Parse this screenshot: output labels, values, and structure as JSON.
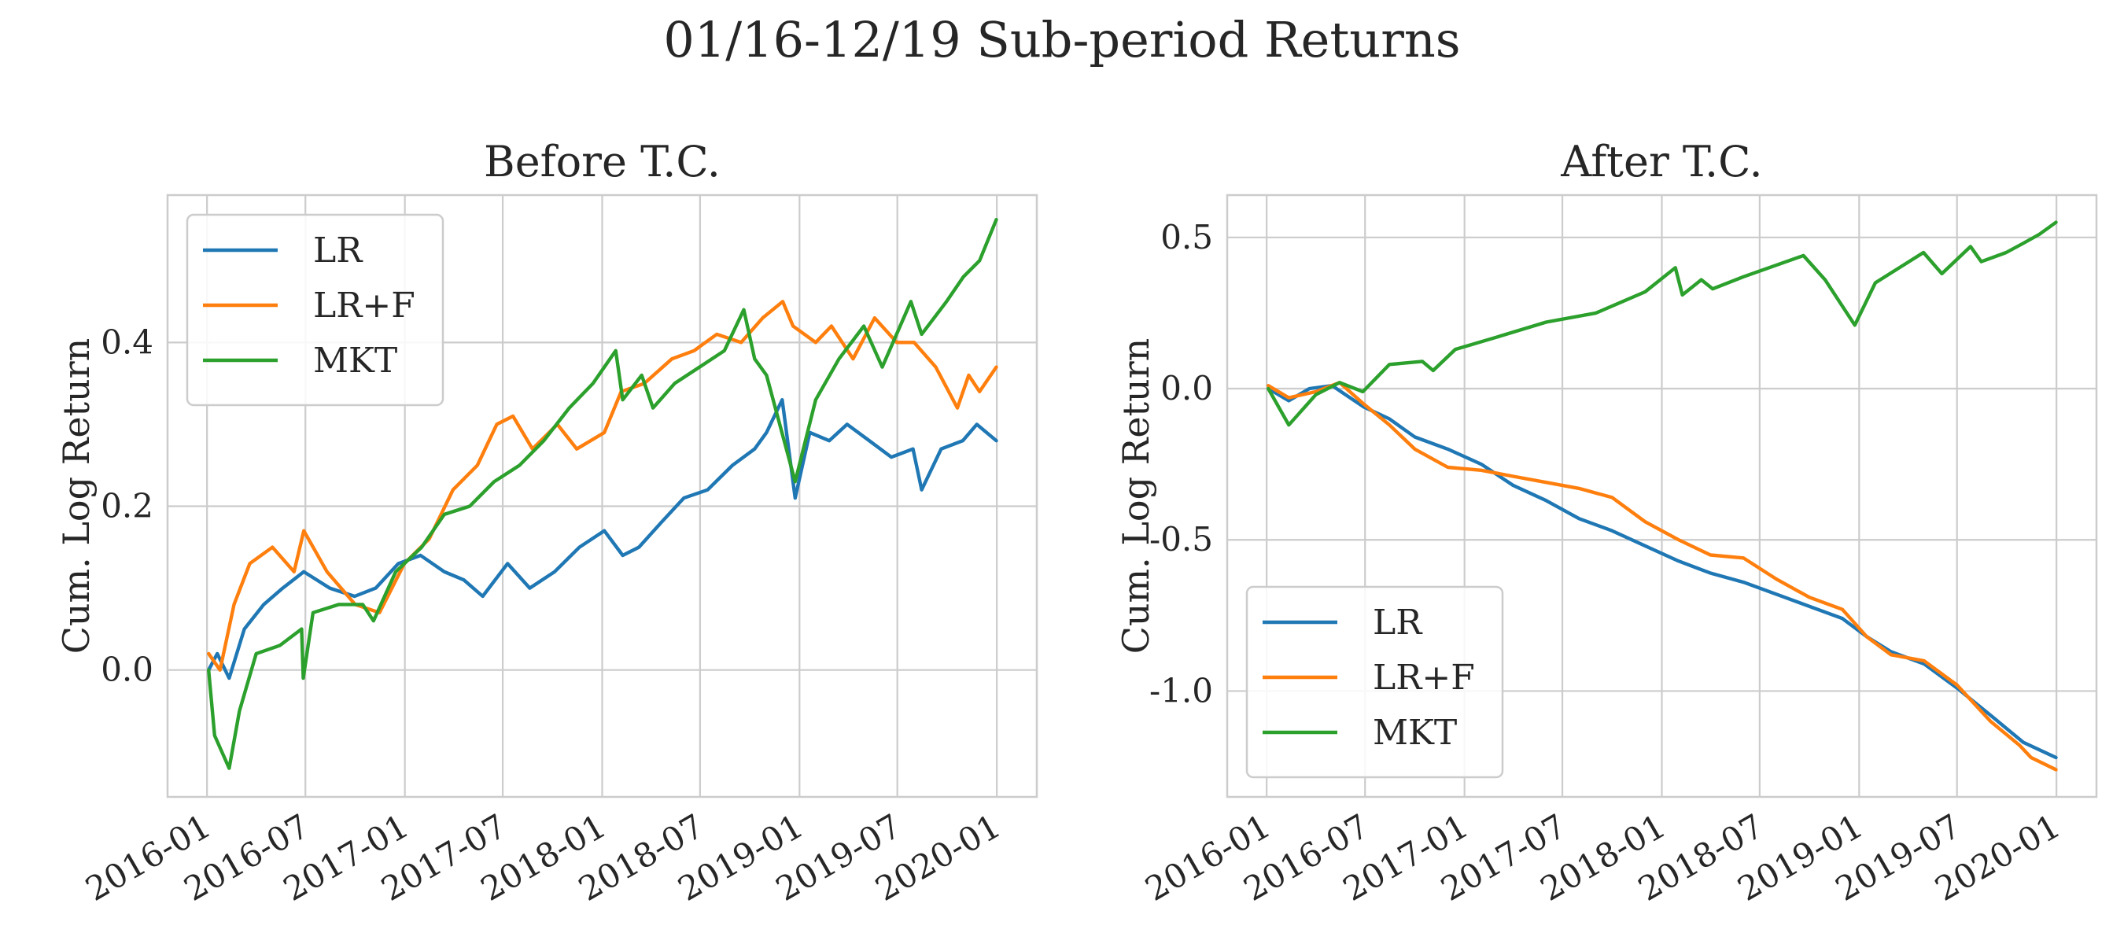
{
  "figure": {
    "title": "01/16-12/19 Sub-period Returns"
  },
  "colors": {
    "LR": "#1f77b4",
    "LR+F": "#ff7f0e",
    "MKT": "#2ca02c",
    "grid": "#cccccc"
  },
  "chart_data": [
    {
      "type": "line",
      "title": "Before T.C.",
      "xlabel": "",
      "ylabel": "Cum. Log Return",
      "x_ticks": [
        "2016-01",
        "2016-07",
        "2017-01",
        "2017-07",
        "2018-01",
        "2018-07",
        "2019-01",
        "2019-07",
        "2020-01"
      ],
      "y_ticks": [
        "0.0",
        "0.2",
        "0.4"
      ],
      "y_tick_values": [
        0.0,
        0.2,
        0.4
      ],
      "xlim": [
        "2015-10-20",
        "2020-03-15"
      ],
      "ylim": [
        -0.155,
        0.58
      ],
      "grid": true,
      "legend": "upper-left",
      "series": [
        {
          "name": "LR",
          "x": [
            "2016-01-04",
            "2016-01-20",
            "2016-02-11",
            "2016-03-10",
            "2016-04-15",
            "2016-05-20",
            "2016-06-28",
            "2016-08-15",
            "2016-09-30",
            "2016-11-08",
            "2016-12-20",
            "2017-01-30",
            "2017-03-15",
            "2017-04-20",
            "2017-05-25",
            "2017-07-10",
            "2017-08-20",
            "2017-10-05",
            "2017-11-20",
            "2018-01-05",
            "2018-02-08",
            "2018-03-10",
            "2018-04-20",
            "2018-06-01",
            "2018-07-15",
            "2018-08-30",
            "2018-10-10",
            "2018-11-01",
            "2018-11-30",
            "2018-12-24",
            "2019-01-20",
            "2019-02-25",
            "2019-03-30",
            "2019-05-10",
            "2019-06-20",
            "2019-07-30",
            "2019-08-15",
            "2019-09-20",
            "2019-10-30",
            "2019-11-25",
            "2019-12-31"
          ],
          "y": [
            0.0,
            0.02,
            -0.01,
            0.05,
            0.08,
            0.1,
            0.12,
            0.1,
            0.09,
            0.1,
            0.13,
            0.14,
            0.12,
            0.11,
            0.09,
            0.13,
            0.1,
            0.12,
            0.15,
            0.17,
            0.14,
            0.15,
            0.18,
            0.21,
            0.22,
            0.25,
            0.27,
            0.29,
            0.33,
            0.21,
            0.29,
            0.28,
            0.3,
            0.28,
            0.26,
            0.27,
            0.22,
            0.27,
            0.28,
            0.3,
            0.28
          ]
        },
        {
          "name": "LR+F",
          "x": [
            "2016-01-04",
            "2016-01-25",
            "2016-02-20",
            "2016-03-20",
            "2016-05-01",
            "2016-06-10",
            "2016-06-28",
            "2016-08-10",
            "2016-10-01",
            "2016-11-15",
            "2016-12-31",
            "2017-02-15",
            "2017-03-31",
            "2017-05-15",
            "2017-06-20",
            "2017-07-20",
            "2017-08-25",
            "2017-10-10",
            "2017-11-15",
            "2018-01-05",
            "2018-02-05",
            "2018-03-20",
            "2018-05-10",
            "2018-06-20",
            "2018-08-01",
            "2018-09-15",
            "2018-10-25",
            "2018-12-01",
            "2018-12-20",
            "2019-01-31",
            "2019-03-01",
            "2019-04-10",
            "2019-05-20",
            "2019-06-30",
            "2019-08-01",
            "2019-09-10",
            "2019-10-20",
            "2019-11-10",
            "2019-11-30",
            "2019-12-31"
          ],
          "y": [
            0.02,
            0.0,
            0.08,
            0.13,
            0.15,
            0.12,
            0.17,
            0.12,
            0.08,
            0.07,
            0.13,
            0.16,
            0.22,
            0.25,
            0.3,
            0.31,
            0.27,
            0.3,
            0.27,
            0.29,
            0.34,
            0.35,
            0.38,
            0.39,
            0.41,
            0.4,
            0.43,
            0.45,
            0.42,
            0.4,
            0.42,
            0.38,
            0.43,
            0.4,
            0.4,
            0.37,
            0.32,
            0.36,
            0.34,
            0.37
          ]
        },
        {
          "name": "MKT",
          "x": [
            "2016-01-04",
            "2016-01-15",
            "2016-02-11",
            "2016-03-01",
            "2016-04-01",
            "2016-05-15",
            "2016-06-24",
            "2016-06-27",
            "2016-07-15",
            "2016-09-01",
            "2016-10-15",
            "2016-11-04",
            "2016-12-15",
            "2017-02-01",
            "2017-03-15",
            "2017-05-01",
            "2017-06-15",
            "2017-08-01",
            "2017-09-15",
            "2017-11-01",
            "2017-12-15",
            "2018-01-26",
            "2018-02-08",
            "2018-03-15",
            "2018-04-05",
            "2018-05-15",
            "2018-06-30",
            "2018-08-15",
            "2018-09-20",
            "2018-10-10",
            "2018-11-01",
            "2018-12-24",
            "2019-01-31",
            "2019-03-15",
            "2019-04-30",
            "2019-06-03",
            "2019-07-26",
            "2019-08-15",
            "2019-09-30",
            "2019-10-31",
            "2019-11-30",
            "2019-12-31"
          ],
          "y": [
            0.0,
            -0.08,
            -0.12,
            -0.05,
            0.02,
            0.03,
            0.05,
            -0.01,
            0.07,
            0.08,
            0.08,
            0.06,
            0.12,
            0.15,
            0.19,
            0.2,
            0.23,
            0.25,
            0.28,
            0.32,
            0.35,
            0.39,
            0.33,
            0.36,
            0.32,
            0.35,
            0.37,
            0.39,
            0.44,
            0.38,
            0.36,
            0.23,
            0.33,
            0.38,
            0.42,
            0.37,
            0.45,
            0.41,
            0.45,
            0.48,
            0.5,
            0.55
          ]
        }
      ]
    },
    {
      "type": "line",
      "title": "After T.C.",
      "xlabel": "",
      "ylabel": "Cum. Log Return",
      "x_ticks": [
        "2016-01",
        "2016-07",
        "2017-01",
        "2017-07",
        "2018-01",
        "2018-07",
        "2019-01",
        "2019-07",
        "2020-01"
      ],
      "y_ticks": [
        "0.5",
        "0.0",
        "-0.5",
        "-1.0"
      ],
      "y_tick_values": [
        0.5,
        0.0,
        -0.5,
        -1.0
      ],
      "xlim": [
        "2015-10-20",
        "2020-03-15"
      ],
      "ylim": [
        -1.35,
        0.64
      ],
      "grid": true,
      "legend": "lower-left",
      "series": [
        {
          "name": "LR",
          "x": [
            "2016-01-04",
            "2016-02-11",
            "2016-03-20",
            "2016-05-01",
            "2016-06-28",
            "2016-08-15",
            "2016-10-01",
            "2016-12-01",
            "2017-02-01",
            "2017-04-01",
            "2017-06-01",
            "2017-08-01",
            "2017-10-01",
            "2017-12-01",
            "2018-02-01",
            "2018-04-01",
            "2018-06-01",
            "2018-08-01",
            "2018-10-01",
            "2018-12-01",
            "2019-01-15",
            "2019-03-01",
            "2019-05-01",
            "2019-07-01",
            "2019-09-01",
            "2019-11-01",
            "2019-12-31"
          ],
          "y": [
            0.0,
            -0.04,
            0.0,
            0.01,
            -0.06,
            -0.1,
            -0.16,
            -0.2,
            -0.25,
            -0.32,
            -0.37,
            -0.43,
            -0.47,
            -0.52,
            -0.57,
            -0.61,
            -0.64,
            -0.68,
            -0.72,
            -0.76,
            -0.82,
            -0.87,
            -0.91,
            -0.99,
            -1.08,
            -1.17,
            -1.22
          ]
        },
        {
          "name": "LR+F",
          "x": [
            "2016-01-04",
            "2016-02-11",
            "2016-04-01",
            "2016-05-15",
            "2016-06-28",
            "2016-08-15",
            "2016-10-01",
            "2016-12-01",
            "2017-02-01",
            "2017-04-01",
            "2017-06-01",
            "2017-08-01",
            "2017-10-01",
            "2017-12-01",
            "2018-02-01",
            "2018-04-01",
            "2018-06-01",
            "2018-08-01",
            "2018-10-01",
            "2018-12-01",
            "2019-01-15",
            "2019-03-01",
            "2019-05-01",
            "2019-07-01",
            "2019-09-01",
            "2019-10-25",
            "2019-11-15",
            "2019-12-31"
          ],
          "y": [
            0.01,
            -0.03,
            -0.01,
            0.02,
            -0.05,
            -0.12,
            -0.2,
            -0.26,
            -0.27,
            -0.29,
            -0.31,
            -0.33,
            -0.36,
            -0.44,
            -0.5,
            -0.55,
            -0.56,
            -0.63,
            -0.69,
            -0.73,
            -0.82,
            -0.88,
            -0.9,
            -0.98,
            -1.1,
            -1.18,
            -1.22,
            -1.26
          ]
        },
        {
          "name": "MKT",
          "x": [
            "2016-01-04",
            "2016-02-11",
            "2016-04-01",
            "2016-05-15",
            "2016-06-27",
            "2016-08-15",
            "2016-10-15",
            "2016-11-04",
            "2016-12-15",
            "2017-03-01",
            "2017-06-01",
            "2017-09-01",
            "2017-12-01",
            "2018-01-26",
            "2018-02-08",
            "2018-03-15",
            "2018-04-05",
            "2018-06-01",
            "2018-09-20",
            "2018-10-30",
            "2018-12-24",
            "2019-01-31",
            "2019-04-30",
            "2019-06-03",
            "2019-07-26",
            "2019-08-15",
            "2019-09-30",
            "2019-10-31",
            "2019-11-30",
            "2019-12-31"
          ],
          "y": [
            0.0,
            -0.12,
            -0.02,
            0.02,
            -0.01,
            0.08,
            0.09,
            0.06,
            0.13,
            0.17,
            0.22,
            0.25,
            0.32,
            0.4,
            0.31,
            0.36,
            0.33,
            0.37,
            0.44,
            0.36,
            0.21,
            0.35,
            0.45,
            0.38,
            0.47,
            0.42,
            0.45,
            0.48,
            0.51,
            0.55
          ]
        }
      ]
    }
  ]
}
